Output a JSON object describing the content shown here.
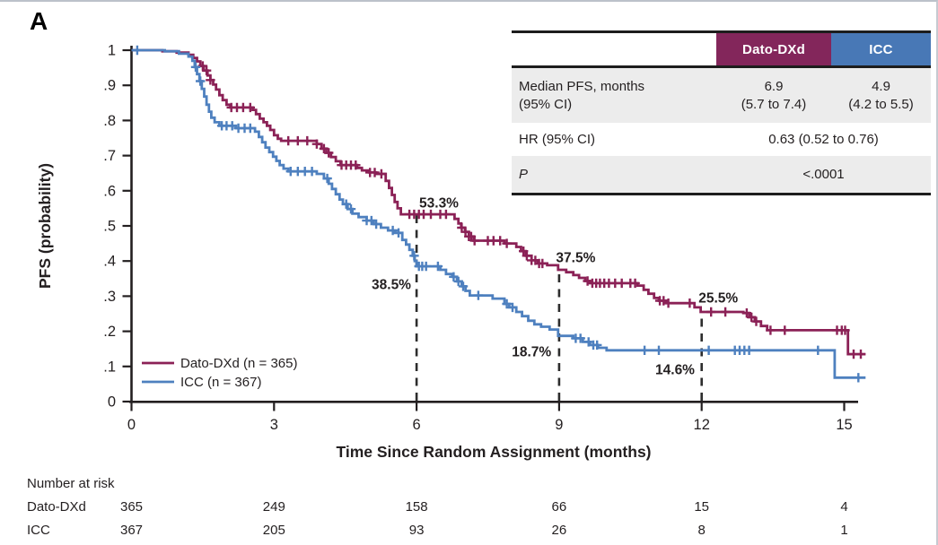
{
  "panel_label": "A",
  "results_table": {
    "columns": [
      "Dato-DXd",
      "ICC"
    ],
    "header_colors": {
      "dato_dxd": "#83265B",
      "icc": "#4878B6"
    },
    "rows": {
      "median": {
        "label_line1": "Median PFS, months",
        "label_line2": "(95% CI)",
        "dato_line1": "6.9",
        "dato_line2": "(5.7 to 7.4)",
        "icc_line1": "4.9",
        "icc_line2": "(4.2 to 5.5)"
      },
      "hr": {
        "label": "HR (95% CI)",
        "value": "0.63 (0.52 to 0.76)"
      },
      "p": {
        "label": "P",
        "value": "<.0001"
      }
    }
  },
  "chart_data": {
    "type": "line",
    "subtype": "kaplan_meier_step",
    "title": "",
    "xlabel": "Time Since Random Assignment (months)",
    "ylabel": "PFS (probability)",
    "xlim": [
      0,
      15.6
    ],
    "ylim": [
      0,
      1
    ],
    "xticks": [
      0,
      3,
      6,
      9,
      12,
      15
    ],
    "yticks": [
      0,
      0.1,
      0.2,
      0.3,
      0.4,
      0.5,
      0.6,
      0.7,
      0.8,
      0.9,
      1
    ],
    "ytick_labels": [
      "0",
      ".1",
      ".2",
      ".3",
      ".4",
      ".5",
      ".6",
      ".7",
      ".8",
      ".9",
      "1"
    ],
    "grid": false,
    "legend_position": "lower-left-inside",
    "landmark_lines_x": [
      6,
      9,
      12
    ],
    "annotations": [
      {
        "text": "53.3%",
        "x": 6.47,
        "y": 0.566,
        "series": 0
      },
      {
        "text": "38.5%",
        "x": 5.47,
        "y": 0.334,
        "series": 1
      },
      {
        "text": "37.5%",
        "x": 9.35,
        "y": 0.411,
        "series": 0
      },
      {
        "text": "18.7%",
        "x": 8.42,
        "y": 0.143,
        "series": 1
      },
      {
        "text": "25.5%",
        "x": 12.35,
        "y": 0.296,
        "series": 0
      },
      {
        "text": "14.6%",
        "x": 11.44,
        "y": 0.092,
        "series": 1
      }
    ],
    "series": [
      {
        "name": "Dato-DXd (n = 365)",
        "color": "#8B2156",
        "end": 15.45,
        "steps": [
          [
            0,
            1
          ],
          [
            0.65,
            0.997
          ],
          [
            0.95,
            0.993
          ],
          [
            1.2,
            0.987
          ],
          [
            1.3,
            0.978
          ],
          [
            1.38,
            0.968
          ],
          [
            1.45,
            0.955
          ],
          [
            1.52,
            0.942
          ],
          [
            1.6,
            0.928
          ],
          [
            1.66,
            0.915
          ],
          [
            1.72,
            0.902
          ],
          [
            1.78,
            0.888
          ],
          [
            1.85,
            0.872
          ],
          [
            1.92,
            0.858
          ],
          [
            2.0,
            0.845
          ],
          [
            2.08,
            0.837
          ],
          [
            2.55,
            0.83
          ],
          [
            2.62,
            0.818
          ],
          [
            2.7,
            0.805
          ],
          [
            2.78,
            0.795
          ],
          [
            2.85,
            0.785
          ],
          [
            2.92,
            0.773
          ],
          [
            3.0,
            0.758
          ],
          [
            3.08,
            0.748
          ],
          [
            3.15,
            0.742
          ],
          [
            3.9,
            0.733
          ],
          [
            4.0,
            0.72
          ],
          [
            4.1,
            0.708
          ],
          [
            4.2,
            0.696
          ],
          [
            4.3,
            0.684
          ],
          [
            4.4,
            0.673
          ],
          [
            4.75,
            0.665
          ],
          [
            4.85,
            0.658
          ],
          [
            5.0,
            0.652
          ],
          [
            5.15,
            0.648
          ],
          [
            5.35,
            0.628
          ],
          [
            5.42,
            0.608
          ],
          [
            5.48,
            0.588
          ],
          [
            5.54,
            0.568
          ],
          [
            5.6,
            0.55
          ],
          [
            5.67,
            0.533
          ],
          [
            6.8,
            0.52
          ],
          [
            6.88,
            0.507
          ],
          [
            6.94,
            0.495
          ],
          [
            7.02,
            0.483
          ],
          [
            7.1,
            0.47
          ],
          [
            7.2,
            0.458
          ],
          [
            7.85,
            0.45
          ],
          [
            8.1,
            0.44
          ],
          [
            8.2,
            0.428
          ],
          [
            8.3,
            0.415
          ],
          [
            8.42,
            0.402
          ],
          [
            8.55,
            0.393
          ],
          [
            8.75,
            0.388
          ],
          [
            8.98,
            0.375
          ],
          [
            9.15,
            0.368
          ],
          [
            9.3,
            0.36
          ],
          [
            9.42,
            0.352
          ],
          [
            9.55,
            0.343
          ],
          [
            9.65,
            0.337
          ],
          [
            10.65,
            0.33
          ],
          [
            10.78,
            0.318
          ],
          [
            10.88,
            0.307
          ],
          [
            11.0,
            0.295
          ],
          [
            11.1,
            0.287
          ],
          [
            11.25,
            0.28
          ],
          [
            11.85,
            0.268
          ],
          [
            11.98,
            0.255
          ],
          [
            12.88,
            0.252
          ],
          [
            13.0,
            0.24
          ],
          [
            13.12,
            0.228
          ],
          [
            13.25,
            0.215
          ],
          [
            13.38,
            0.203
          ],
          [
            15.08,
            0.135
          ]
        ],
        "censor_times": [
          1.5,
          1.58,
          1.66,
          2.1,
          2.22,
          2.35,
          2.5,
          3.3,
          3.5,
          3.7,
          3.9,
          4.05,
          4.15,
          4.42,
          4.52,
          4.62,
          4.72,
          5.02,
          5.12,
          5.26,
          5.85,
          5.95,
          6.05,
          6.15,
          6.3,
          6.5,
          6.62,
          6.95,
          7.03,
          7.1,
          7.15,
          7.22,
          7.5,
          7.62,
          7.76,
          7.9,
          8.25,
          8.32,
          8.42,
          8.5,
          8.58,
          8.65,
          9.6,
          9.7,
          9.78,
          9.86,
          9.95,
          10.05,
          10.18,
          10.32,
          10.5,
          10.6,
          11.12,
          11.2,
          11.3,
          11.75,
          12.2,
          12.5,
          12.95,
          13.05,
          13.15,
          13.45,
          13.75,
          14.85,
          14.95,
          15.02,
          15.2,
          15.35
        ]
      },
      {
        "name": "ICC (n = 367)",
        "color": "#4E80BF",
        "end": 15.45,
        "steps": [
          [
            0,
            1
          ],
          [
            0.7,
            0.997
          ],
          [
            1.0,
            0.99
          ],
          [
            1.2,
            0.982
          ],
          [
            1.28,
            0.97
          ],
          [
            1.33,
            0.952
          ],
          [
            1.38,
            0.932
          ],
          [
            1.43,
            0.912
          ],
          [
            1.48,
            0.89
          ],
          [
            1.53,
            0.868
          ],
          [
            1.58,
            0.845
          ],
          [
            1.63,
            0.825
          ],
          [
            1.68,
            0.808
          ],
          [
            1.75,
            0.795
          ],
          [
            1.85,
            0.785
          ],
          [
            2.2,
            0.778
          ],
          [
            2.6,
            0.768
          ],
          [
            2.68,
            0.753
          ],
          [
            2.75,
            0.738
          ],
          [
            2.82,
            0.723
          ],
          [
            2.9,
            0.71
          ],
          [
            2.98,
            0.697
          ],
          [
            3.05,
            0.685
          ],
          [
            3.12,
            0.673
          ],
          [
            3.2,
            0.663
          ],
          [
            3.3,
            0.655
          ],
          [
            3.9,
            0.648
          ],
          [
            4.05,
            0.635
          ],
          [
            4.15,
            0.62
          ],
          [
            4.22,
            0.605
          ],
          [
            4.3,
            0.59
          ],
          [
            4.38,
            0.575
          ],
          [
            4.45,
            0.562
          ],
          [
            4.55,
            0.548
          ],
          [
            4.65,
            0.535
          ],
          [
            4.78,
            0.525
          ],
          [
            4.95,
            0.515
          ],
          [
            5.1,
            0.505
          ],
          [
            5.25,
            0.495
          ],
          [
            5.4,
            0.487
          ],
          [
            5.55,
            0.48
          ],
          [
            5.7,
            0.46
          ],
          [
            5.78,
            0.447
          ],
          [
            5.85,
            0.432
          ],
          [
            5.92,
            0.415
          ],
          [
            5.96,
            0.4
          ],
          [
            6.0,
            0.385
          ],
          [
            6.5,
            0.375
          ],
          [
            6.62,
            0.363
          ],
          [
            6.75,
            0.355
          ],
          [
            6.85,
            0.342
          ],
          [
            6.95,
            0.328
          ],
          [
            7.03,
            0.315
          ],
          [
            7.12,
            0.302
          ],
          [
            7.6,
            0.293
          ],
          [
            7.85,
            0.278
          ],
          [
            7.95,
            0.268
          ],
          [
            8.1,
            0.255
          ],
          [
            8.22,
            0.243
          ],
          [
            8.35,
            0.23
          ],
          [
            8.48,
            0.22
          ],
          [
            8.62,
            0.213
          ],
          [
            8.8,
            0.205
          ],
          [
            8.98,
            0.187
          ],
          [
            9.3,
            0.18
          ],
          [
            9.5,
            0.17
          ],
          [
            9.65,
            0.161
          ],
          [
            9.82,
            0.153
          ],
          [
            10.0,
            0.146
          ],
          [
            14.8,
            0.068
          ]
        ],
        "censor_times": [
          0.12,
          1.35,
          1.45,
          1.9,
          2.0,
          2.12,
          2.25,
          2.38,
          2.5,
          3.35,
          3.5,
          3.65,
          3.8,
          4.12,
          4.52,
          4.62,
          4.95,
          5.05,
          5.15,
          5.5,
          5.62,
          5.95,
          6.05,
          6.12,
          6.2,
          6.45,
          6.78,
          6.88,
          6.98,
          7.3,
          7.9,
          8.02,
          9.35,
          9.45,
          9.62,
          9.72,
          9.8,
          10.8,
          11.1,
          12.15,
          12.7,
          12.8,
          12.9,
          13.0,
          14.45,
          15.3
        ]
      }
    ]
  },
  "risk_table": {
    "title": "Number at risk",
    "timepoints": [
      0,
      3,
      6,
      9,
      12,
      15
    ],
    "rows": [
      {
        "label": "Dato-DXd",
        "values": [
          365,
          249,
          158,
          66,
          15,
          4
        ]
      },
      {
        "label": "ICC",
        "values": [
          367,
          205,
          93,
          26,
          8,
          1
        ]
      }
    ]
  }
}
